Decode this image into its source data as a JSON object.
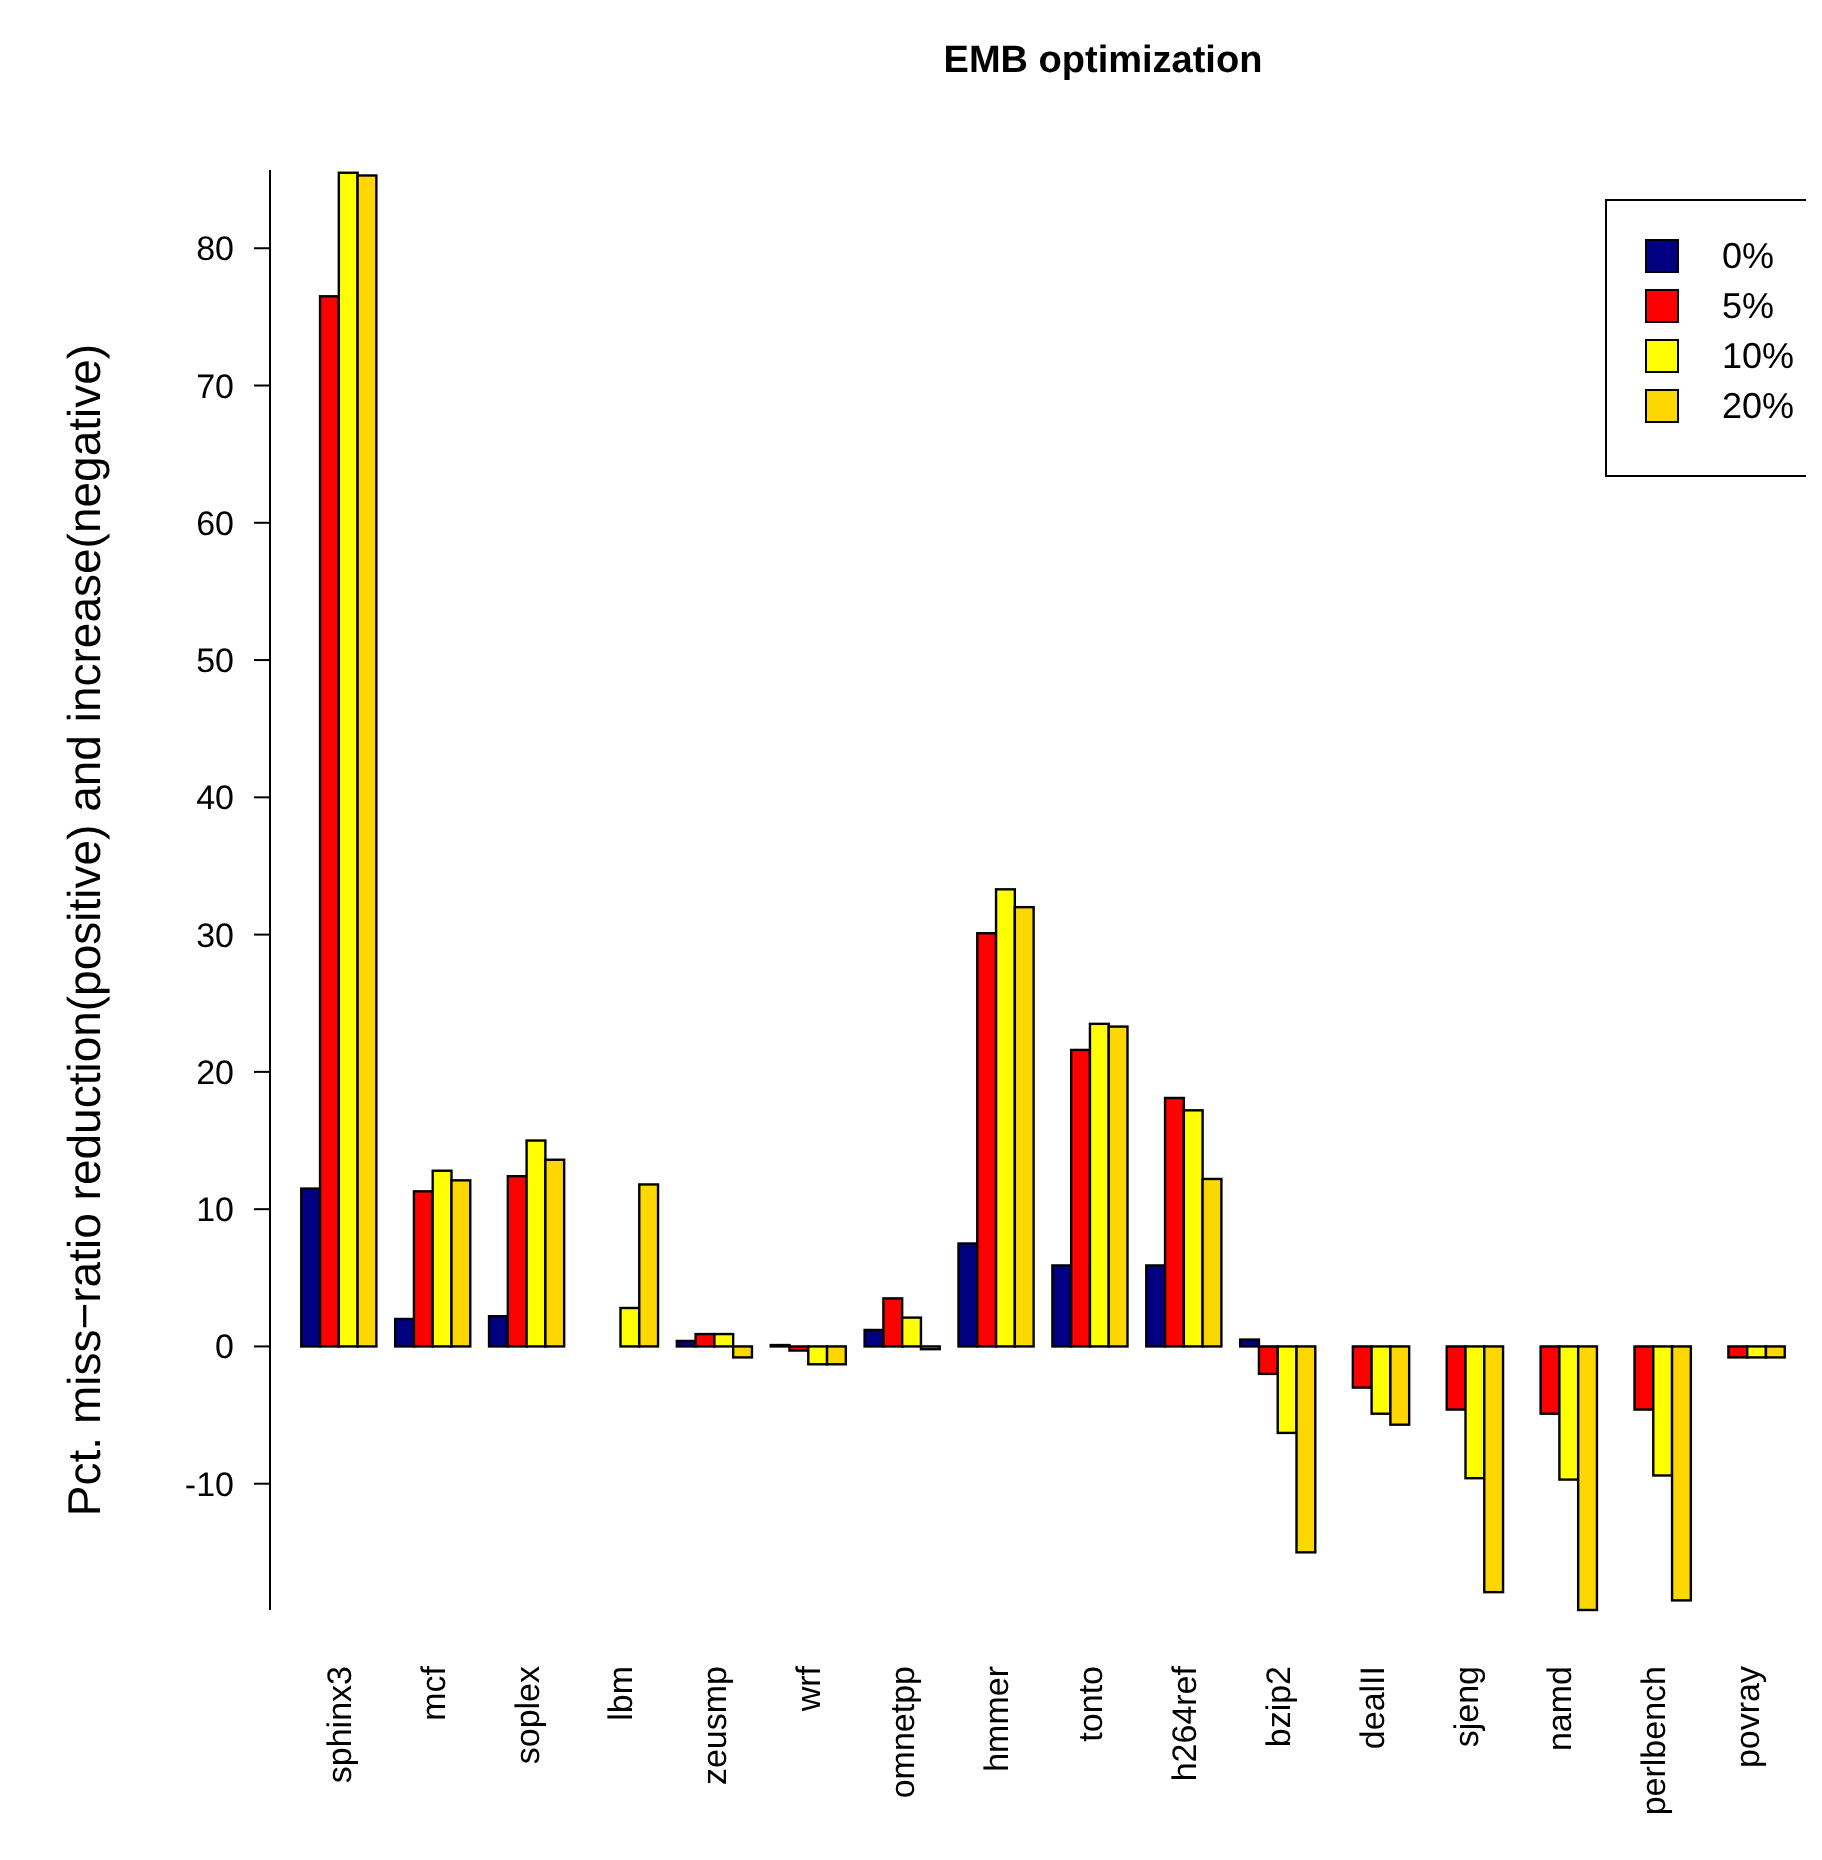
{
  "chart_data": {
    "type": "bar",
    "title": "EMB optimization",
    "ylabel": "Pct. miss−ratio reduction(positive) and increase(negative)",
    "categories": [
      "sphinx3",
      "mcf",
      "soplex",
      "lbm",
      "zeusmp",
      "wrf",
      "omnetpp",
      "hmmer",
      "tonto",
      "h264ref",
      "bzip2",
      "dealII",
      "sjeng",
      "namd",
      "perlbench",
      "povray"
    ],
    "series": [
      {
        "name": "0%",
        "color": "#000080",
        "values": [
          11.5,
          2.0,
          2.2,
          0,
          0.4,
          0.1,
          1.2,
          7.5,
          5.9,
          5.9,
          0.5,
          0,
          0,
          0,
          0,
          0
        ]
      },
      {
        "name": "5%",
        "color": "#ff0000",
        "values": [
          76.5,
          11.3,
          12.4,
          0,
          0.9,
          -0.3,
          3.5,
          30.1,
          21.6,
          18.1,
          -2.0,
          -3.0,
          -4.6,
          -4.9,
          -4.6,
          -0.8
        ]
      },
      {
        "name": "10%",
        "color": "#ffff00",
        "values": [
          85.5,
          12.8,
          15.0,
          2.8,
          0.9,
          -1.3,
          2.1,
          33.3,
          23.5,
          17.2,
          -6.3,
          -4.9,
          -9.6,
          -9.7,
          -9.4,
          -0.8
        ]
      },
      {
        "name": "20%",
        "color": "#ffd700",
        "values": [
          85.3,
          12.1,
          13.6,
          11.8,
          -0.8,
          -1.3,
          -0.2,
          32.0,
          23.3,
          12.2,
          -15.0,
          -5.7,
          -17.9,
          -19.2,
          -18.5,
          -0.8
        ]
      }
    ],
    "ylim": [
      -19.2,
      85.7
    ],
    "yticks": [
      -10,
      0,
      10,
      20,
      30,
      40,
      50,
      60,
      70,
      80
    ],
    "grid": false,
    "legend": "top right"
  }
}
